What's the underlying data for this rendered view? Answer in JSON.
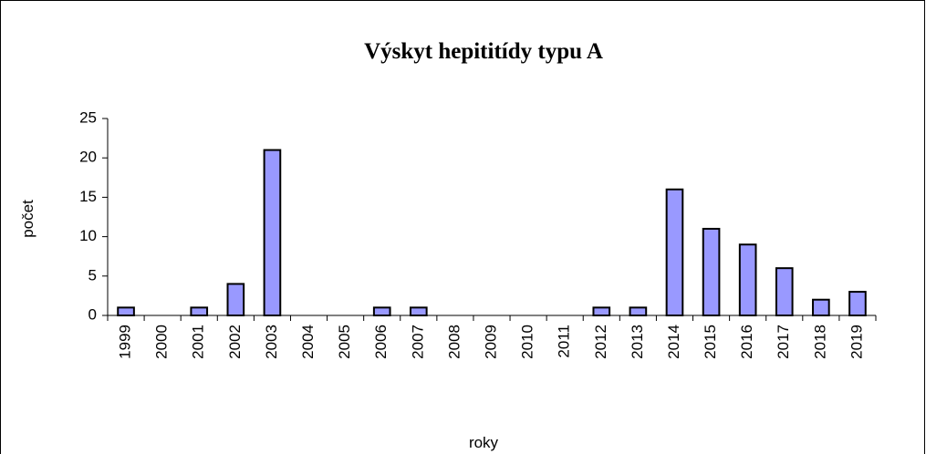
{
  "chart_data": {
    "type": "bar",
    "title": "Výskyt hepititídy typu A",
    "x_label": "roky",
    "y_label": "počet",
    "categories": [
      "1999",
      "2000",
      "2001",
      "2002",
      "2003",
      "2004",
      "2005",
      "2006",
      "2007",
      "2008",
      "2009",
      "2010",
      "2011",
      "2012",
      "2013",
      "2014",
      "2015",
      "2016",
      "2017",
      "2018",
      "2019"
    ],
    "values": [
      1,
      0,
      1,
      4,
      21,
      0,
      0,
      1,
      1,
      0,
      0,
      0,
      0,
      1,
      1,
      16,
      11,
      9,
      6,
      2,
      3
    ],
    "color": "#9999ff",
    "ylim": [
      0,
      25
    ],
    "yticks": [
      0,
      5,
      10,
      15,
      20,
      25
    ],
    "grid": false
  }
}
